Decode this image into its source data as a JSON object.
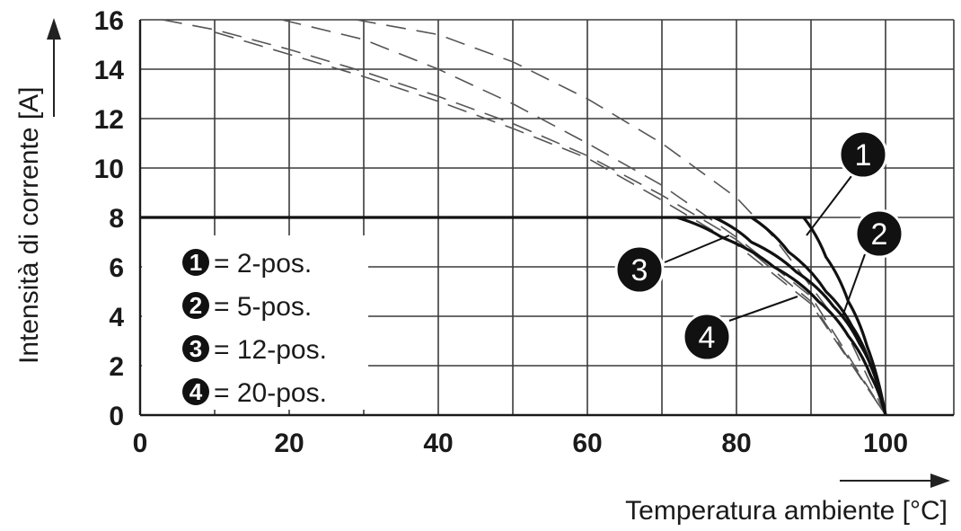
{
  "chart_data": {
    "type": "line",
    "xlabel": "Temperatura ambiente [°C]",
    "ylabel": "Intensità di corrente [A]",
    "xlim": [
      0,
      110
    ],
    "ylim": [
      0,
      16
    ],
    "x_ticks": [
      0,
      20,
      40,
      60,
      80,
      100
    ],
    "y_ticks": [
      0,
      2,
      4,
      6,
      8,
      10,
      12,
      14,
      16
    ],
    "grid": true,
    "limit_line": {
      "value": 8
    },
    "series": [
      {
        "name": "2-pos.",
        "badge": "1",
        "curve_dashed": [
          [
            29,
            16
          ],
          [
            40,
            15.4
          ],
          [
            50,
            14.3
          ],
          [
            60,
            12.8
          ],
          [
            70,
            11
          ],
          [
            80,
            8.8
          ],
          [
            85,
            7.2
          ],
          [
            90,
            5.2
          ],
          [
            95,
            3.2
          ],
          [
            100,
            0
          ]
        ],
        "derating": [
          [
            0,
            8
          ],
          [
            89,
            8
          ],
          [
            92,
            6.4
          ],
          [
            95,
            4.6
          ],
          [
            97.5,
            2.8
          ],
          [
            100,
            0
          ]
        ]
      },
      {
        "name": "5-pos.",
        "badge": "2",
        "curve_dashed": [
          [
            19,
            16
          ],
          [
            30,
            15.2
          ],
          [
            40,
            14
          ],
          [
            50,
            12.6
          ],
          [
            60,
            11
          ],
          [
            70,
            9.3
          ],
          [
            80,
            7.2
          ],
          [
            90,
            4.8
          ],
          [
            100,
            0
          ]
        ],
        "derating": [
          [
            0,
            8
          ],
          [
            82,
            8
          ],
          [
            87,
            6.6
          ],
          [
            92,
            5
          ],
          [
            95.5,
            3.6
          ],
          [
            98,
            2
          ],
          [
            100,
            0
          ]
        ]
      },
      {
        "name": "12-pos.",
        "badge": "3",
        "curve_dashed": [
          [
            3,
            16
          ],
          [
            10,
            15.6
          ],
          [
            20,
            14.8
          ],
          [
            30,
            13.9
          ],
          [
            40,
            12.9
          ],
          [
            50,
            11.8
          ],
          [
            60,
            10.5
          ],
          [
            70,
            8.9
          ],
          [
            80,
            7.1
          ],
          [
            90,
            4.6
          ],
          [
            100,
            0
          ]
        ],
        "derating": [
          [
            0,
            8
          ],
          [
            77,
            8
          ],
          [
            82,
            7
          ],
          [
            88,
            5.8
          ],
          [
            93,
            4.4
          ],
          [
            96.5,
            2.9
          ],
          [
            99,
            1.2
          ],
          [
            100,
            0
          ]
        ]
      },
      {
        "name": "20-pos.",
        "badge": "4",
        "curve_dashed": [
          [
            10,
            15.5
          ],
          [
            20,
            14.6
          ],
          [
            30,
            13.7
          ],
          [
            40,
            12.7
          ],
          [
            50,
            11.6
          ],
          [
            60,
            10.4
          ],
          [
            70,
            8.7
          ],
          [
            80,
            6.9
          ],
          [
            90,
            4.5
          ],
          [
            100,
            0
          ]
        ],
        "derating": [
          [
            0,
            8
          ],
          [
            72,
            8
          ],
          [
            78,
            7.2
          ],
          [
            85,
            6
          ],
          [
            91,
            4.6
          ],
          [
            95,
            3.2
          ],
          [
            98,
            1.6
          ],
          [
            100,
            0
          ]
        ]
      }
    ],
    "legend": {
      "placement": "bottom-left",
      "entries": [
        {
          "badge": "1",
          "label": "= 2-pos."
        },
        {
          "badge": "2",
          "label": "= 5-pos."
        },
        {
          "badge": "3",
          "label": "= 12-pos."
        },
        {
          "badge": "4",
          "label": "= 20-pos."
        }
      ]
    }
  }
}
